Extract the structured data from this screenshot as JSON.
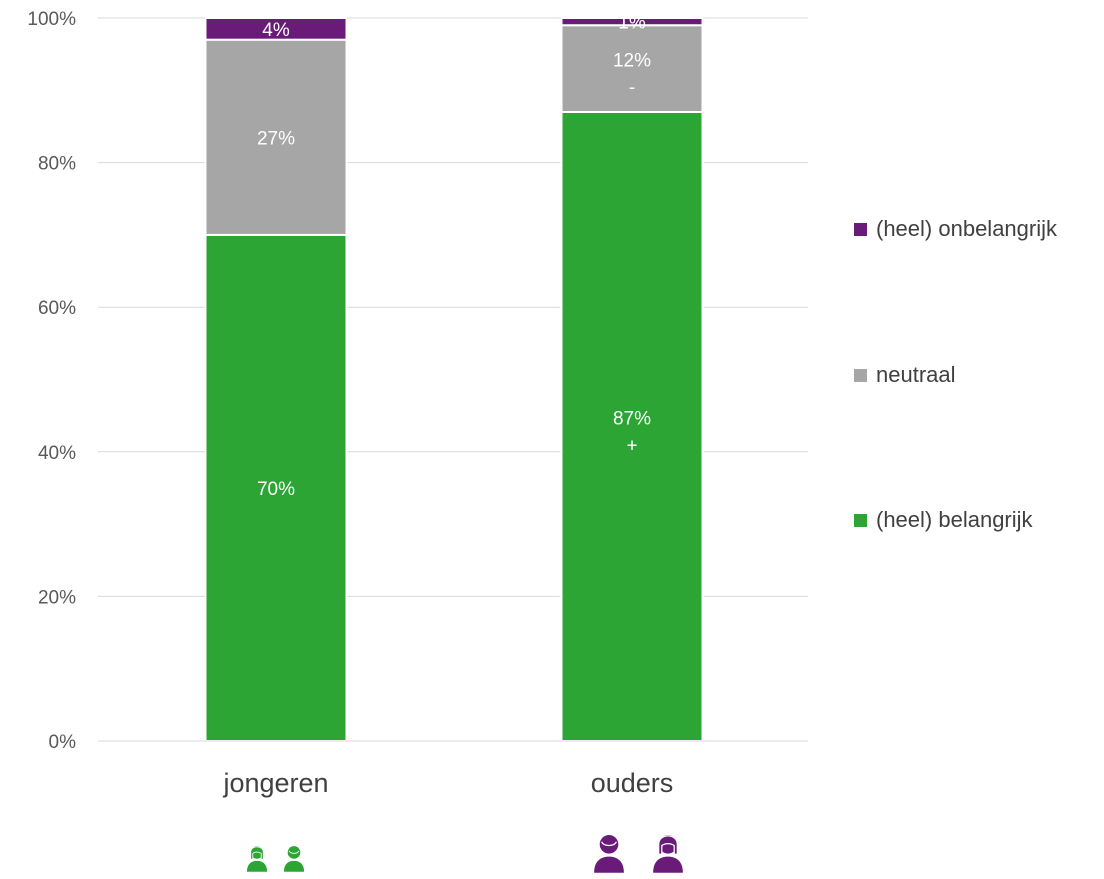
{
  "chart_data": {
    "type": "bar",
    "stacked": true,
    "categories": [
      "jongeren",
      "ouders"
    ],
    "series": [
      {
        "name": "(heel) belangrijk",
        "color": "#2ca535",
        "values": [
          70,
          87
        ],
        "labels": [
          "70%",
          "87%"
        ],
        "marks": [
          "",
          "+"
        ]
      },
      {
        "name": "neutraal",
        "color": "#a6a6a6",
        "values": [
          27,
          12
        ],
        "labels": [
          "27%",
          "12%"
        ],
        "marks": [
          "",
          "-"
        ]
      },
      {
        "name": "(heel) onbelangrijk",
        "color": "#6a1b7a",
        "values": [
          4,
          1
        ],
        "labels": [
          "4%",
          "1%"
        ],
        "marks": [
          "",
          ""
        ]
      }
    ],
    "yticks": [
      "0%",
      "20%",
      "40%",
      "60%",
      "80%",
      "100%"
    ],
    "ylim": [
      0,
      100
    ],
    "grid": true,
    "legend_position": "right",
    "category_icons": [
      {
        "name": "youth-icon",
        "color": "#2ca535"
      },
      {
        "name": "parents-icon",
        "color": "#6a1b7a"
      }
    ]
  }
}
